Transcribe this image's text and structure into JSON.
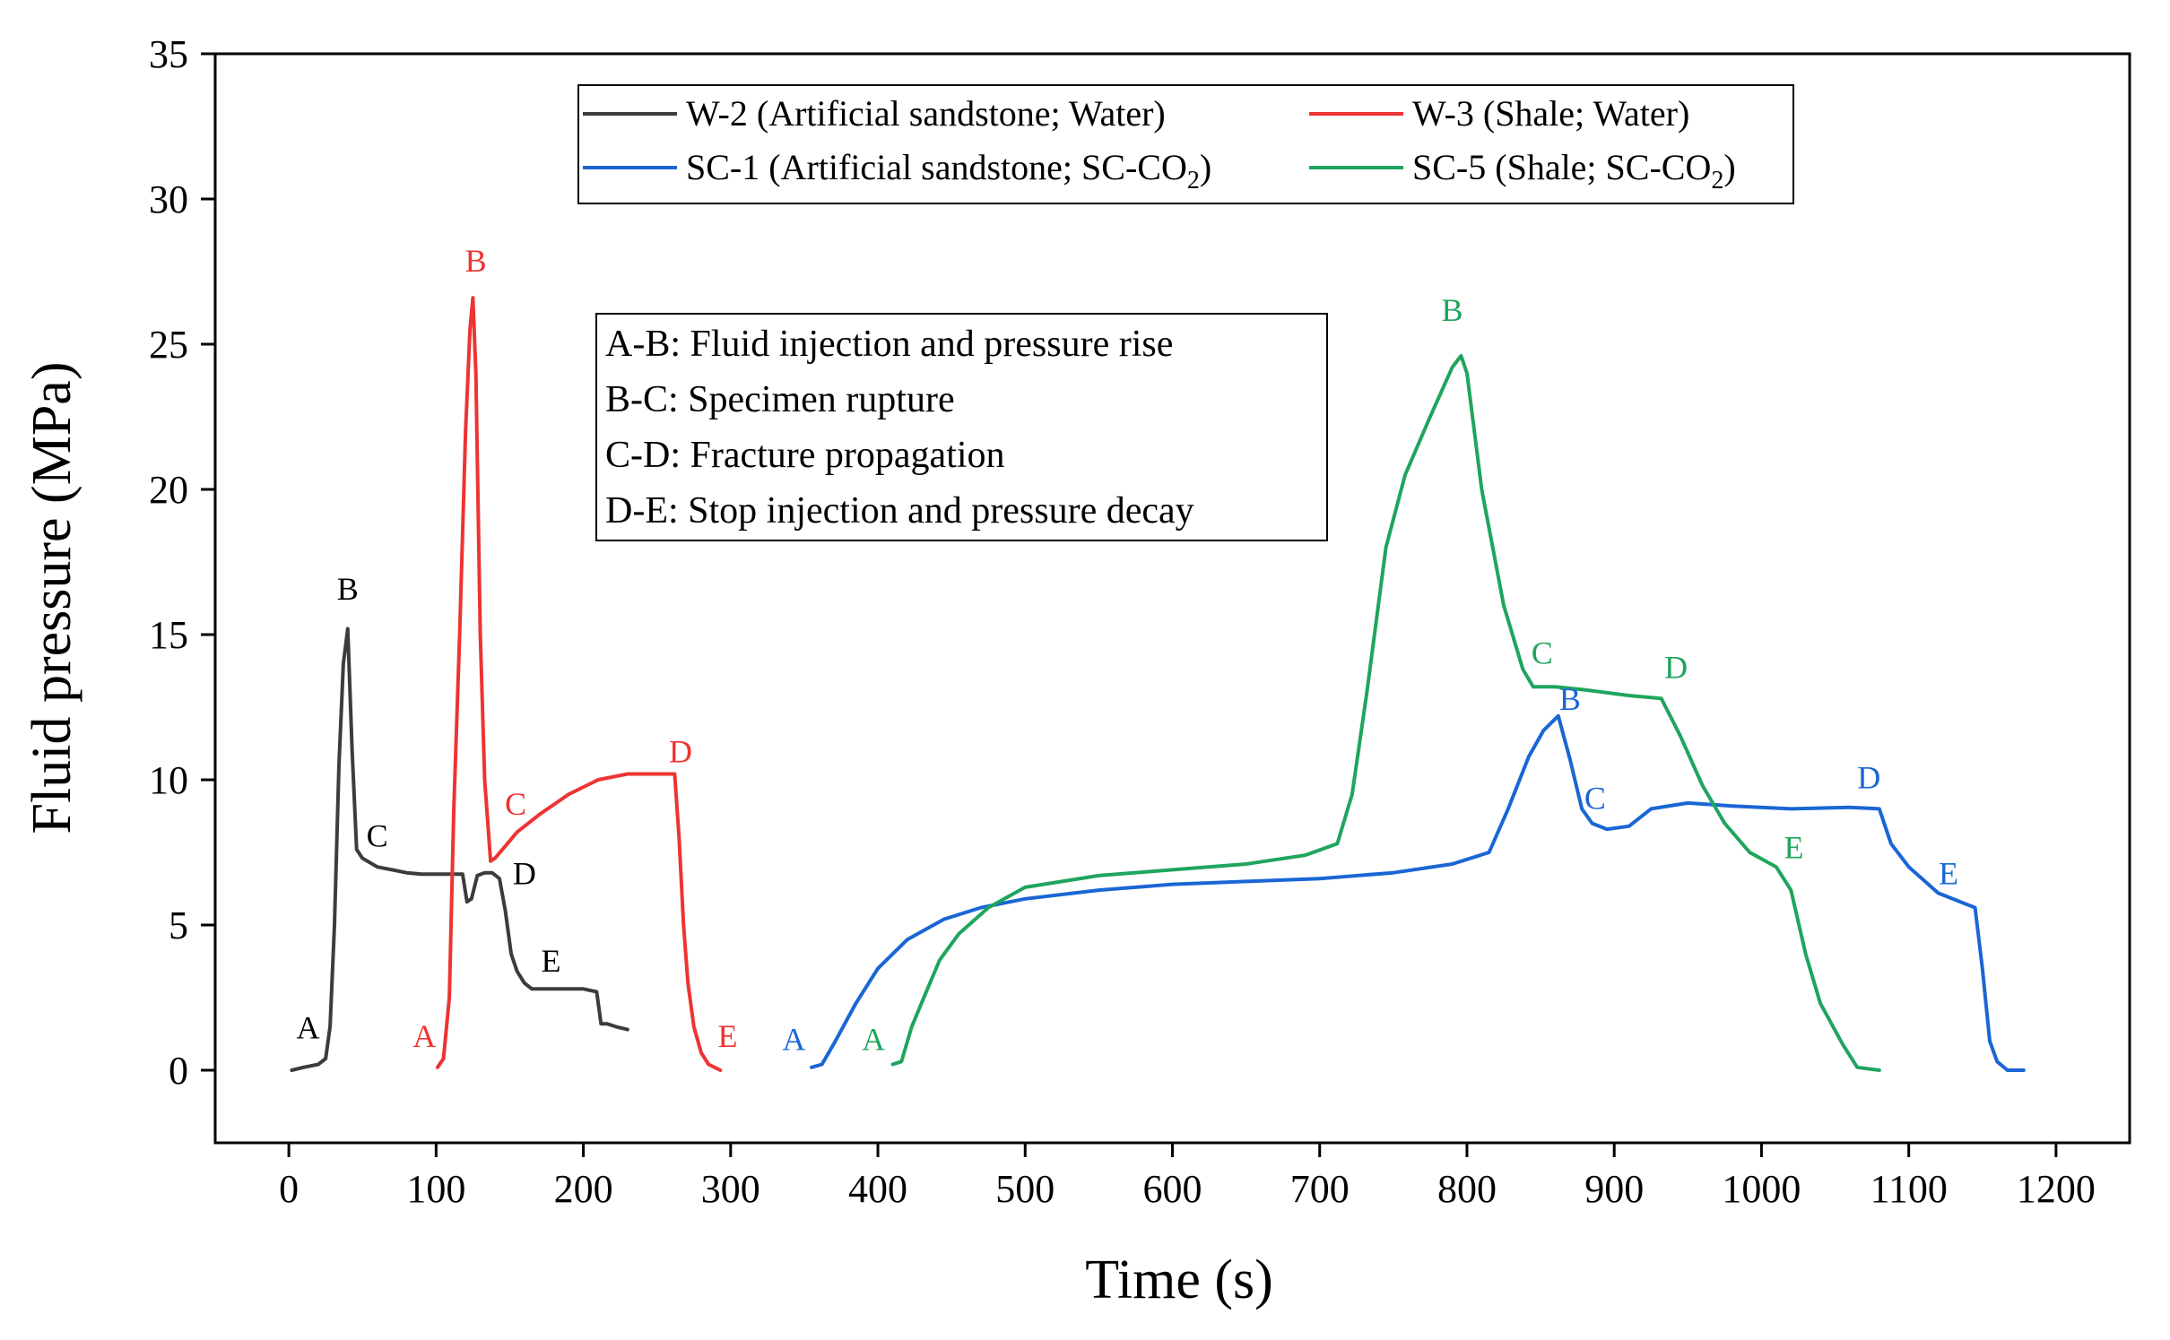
{
  "chart_data": {
    "type": "line",
    "title": "",
    "xlabel": "Time (s)",
    "ylabel": "Fluid pressure (MPa)",
    "xlim": [
      -50,
      1250
    ],
    "ylim": [
      -2.5,
      35
    ],
    "xticks": [
      0,
      100,
      200,
      300,
      400,
      500,
      600,
      700,
      800,
      900,
      1000,
      1100,
      1200
    ],
    "xtick_labels": [
      "0",
      "100",
      "200",
      "300",
      "400",
      "500",
      "600",
      "700",
      "800",
      "900",
      "1000",
      "1100",
      "1200"
    ],
    "yticks": [
      0,
      5,
      10,
      15,
      20,
      25,
      30,
      35
    ],
    "ytick_labels": [
      "0",
      "5",
      "10",
      "15",
      "20",
      "25",
      "30",
      "35"
    ],
    "grid": false,
    "legend_position": "top-center",
    "series": [
      {
        "id": "w2",
        "name": "W-2 (Artificial sandstone; Water)",
        "color": "#3c3c3c",
        "x": [
          2,
          10,
          20,
          25,
          28,
          31,
          34,
          37,
          40,
          43,
          46,
          50,
          60,
          70,
          80,
          90,
          100,
          110,
          118,
          121,
          124,
          128,
          133,
          138,
          143,
          147,
          151,
          155,
          160,
          165,
          170,
          180,
          190,
          200,
          209,
          212,
          216,
          222,
          230
        ],
        "y": [
          0.0,
          0.1,
          0.2,
          0.4,
          1.5,
          5.0,
          10.5,
          14.0,
          15.2,
          11.0,
          7.6,
          7.3,
          7.0,
          6.9,
          6.8,
          6.75,
          6.75,
          6.75,
          6.75,
          5.8,
          5.9,
          6.7,
          6.8,
          6.8,
          6.6,
          5.5,
          4.0,
          3.4,
          3.0,
          2.8,
          2.8,
          2.8,
          2.8,
          2.8,
          2.7,
          1.6,
          1.6,
          1.5,
          1.4
        ]
      },
      {
        "id": "w3",
        "name": "W-3 (Shale; Water)",
        "color": "#ee3333",
        "x": [
          101,
          105,
          109,
          112,
          116,
          120,
          123,
          125,
          127,
          130,
          133,
          137,
          140,
          145,
          155,
          170,
          190,
          210,
          230,
          250,
          262,
          265,
          268,
          271,
          275,
          280,
          285,
          293
        ],
        "y": [
          0.1,
          0.4,
          2.5,
          9.0,
          15.0,
          22.0,
          25.5,
          26.6,
          24.0,
          15.0,
          10.0,
          7.2,
          7.3,
          7.6,
          8.2,
          8.8,
          9.5,
          10.0,
          10.2,
          10.2,
          10.2,
          8.0,
          5.0,
          3.0,
          1.5,
          0.6,
          0.2,
          0.0
        ]
      },
      {
        "id": "sc1",
        "name": "SC-1 (Artificial sandstone; SC-CO2)",
        "color": "#1a66d4",
        "x": [
          355,
          362,
          370,
          385,
          400,
          420,
          445,
          470,
          500,
          550,
          600,
          650,
          700,
          750,
          790,
          815,
          828,
          842,
          852,
          862,
          870,
          878,
          885,
          895,
          910,
          925,
          950,
          980,
          1020,
          1060,
          1080,
          1088,
          1100,
          1120,
          1135,
          1145,
          1150,
          1155,
          1160,
          1167,
          1178
        ],
        "y": [
          0.1,
          0.2,
          0.9,
          2.3,
          3.5,
          4.5,
          5.2,
          5.6,
          5.9,
          6.2,
          6.4,
          6.5,
          6.6,
          6.8,
          7.1,
          7.5,
          9.0,
          10.8,
          11.7,
          12.2,
          10.7,
          9.0,
          8.5,
          8.3,
          8.4,
          9.0,
          9.2,
          9.1,
          9.0,
          9.05,
          9.0,
          7.8,
          7.0,
          6.1,
          5.8,
          5.6,
          3.5,
          1.0,
          0.3,
          0.0,
          0.0
        ]
      },
      {
        "id": "sc5",
        "name": "SC-5 (Shale; SC-CO2)",
        "color": "#1fa55d",
        "x": [
          410,
          416,
          423,
          432,
          442,
          455,
          475,
          500,
          550,
          600,
          650,
          690,
          712,
          722,
          732,
          745,
          758,
          775,
          790,
          796,
          800,
          810,
          825,
          838,
          845,
          860,
          880,
          910,
          932,
          945,
          960,
          975,
          992,
          1010,
          1020,
          1030,
          1040,
          1055,
          1065,
          1080
        ],
        "y": [
          0.2,
          0.3,
          1.5,
          2.6,
          3.8,
          4.7,
          5.6,
          6.3,
          6.7,
          6.9,
          7.1,
          7.4,
          7.8,
          9.5,
          13.0,
          18.0,
          20.5,
          22.5,
          24.2,
          24.6,
          24.0,
          20.0,
          16.0,
          13.8,
          13.2,
          13.2,
          13.1,
          12.9,
          12.8,
          11.5,
          9.8,
          8.5,
          7.5,
          7.0,
          6.2,
          4.0,
          2.3,
          0.9,
          0.1,
          0.0
        ]
      }
    ],
    "point_labels": [
      {
        "series": "w2",
        "text": "A",
        "x": 13,
        "y": 1.1
      },
      {
        "series": "w2",
        "text": "B",
        "x": 40,
        "y": 16.2
      },
      {
        "series": "w2",
        "text": "C",
        "x": 60,
        "y": 7.7
      },
      {
        "series": "w2",
        "text": "D",
        "x": 160,
        "y": 6.4
      },
      {
        "series": "w2",
        "text": "E",
        "x": 178,
        "y": 3.4
      },
      {
        "series": "w3",
        "text": "A",
        "x": 92,
        "y": 0.8
      },
      {
        "series": "w3",
        "text": "B",
        "x": 127,
        "y": 27.5
      },
      {
        "series": "w3",
        "text": "C",
        "x": 154,
        "y": 8.8
      },
      {
        "series": "w3",
        "text": "D",
        "x": 266,
        "y": 10.6
      },
      {
        "series": "w3",
        "text": "E",
        "x": 298,
        "y": 0.8
      },
      {
        "series": "sc1",
        "text": "A",
        "x": 343,
        "y": 0.7
      },
      {
        "series": "sc1",
        "text": "B",
        "x": 870,
        "y": 12.4
      },
      {
        "series": "sc1",
        "text": "C",
        "x": 887,
        "y": 9.0
      },
      {
        "series": "sc1",
        "text": "D",
        "x": 1073,
        "y": 9.7
      },
      {
        "series": "sc1",
        "text": "E",
        "x": 1127,
        "y": 6.4
      },
      {
        "series": "sc5",
        "text": "A",
        "x": 397,
        "y": 0.7
      },
      {
        "series": "sc5",
        "text": "B",
        "x": 790,
        "y": 25.8
      },
      {
        "series": "sc5",
        "text": "C",
        "x": 851,
        "y": 14.0
      },
      {
        "series": "sc5",
        "text": "D",
        "x": 942,
        "y": 13.5
      },
      {
        "series": "sc5",
        "text": "E",
        "x": 1022,
        "y": 7.3
      }
    ],
    "annotations": [
      "A-B: Fluid injection and pressure rise",
      "B-C: Specimen rupture",
      "C-D: Fracture propagation",
      "D-E: Stop injection and pressure decay"
    ],
    "legend": [
      {
        "series": "w2",
        "label": "W-2 (Artificial sandstone; Water)",
        "co2": false,
        "main": "",
        "sub": "",
        "tail": ""
      },
      {
        "series": "w3",
        "label": "W-3 (Shale; Water)",
        "co2": false,
        "main": "",
        "sub": "",
        "tail": ""
      },
      {
        "series": "sc1",
        "label": "SC-1 (Artificial sandstone; SC-CO2)",
        "co2": true,
        "main": "SC-1 (Artificial sandstone; SC-CO",
        "sub": "2",
        "tail": ")"
      },
      {
        "series": "sc5",
        "label": "SC-5 (Shale; SC-CO2)",
        "co2": true,
        "main": "SC-5 (Shale; SC-CO",
        "sub": "2",
        "tail": ")"
      }
    ]
  }
}
